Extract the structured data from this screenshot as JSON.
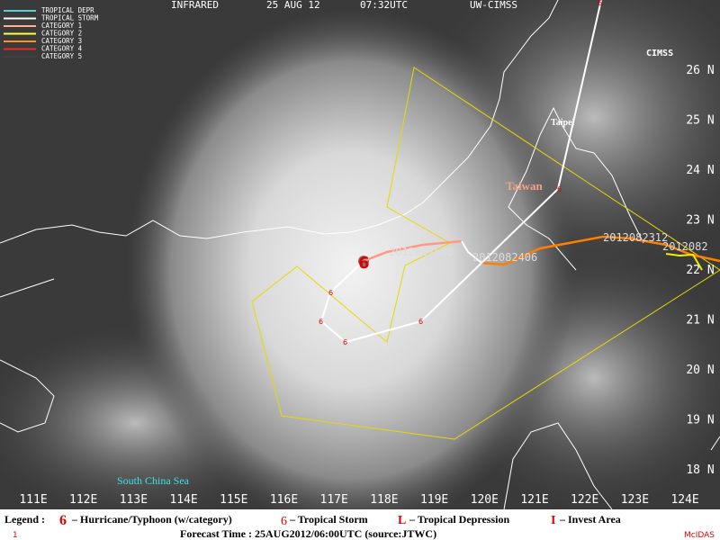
{
  "header": {
    "product": "INFRARED",
    "date": "25 AUG 12",
    "time": "07:32UTC",
    "source": "UW-CIMSS"
  },
  "logo": "CIMSS",
  "track_legend": [
    "TROPICAL DEPR",
    "TROPICAL STORM",
    "CATEGORY 1",
    "CATEGORY 2",
    "CATEGORY 3",
    "CATEGORY 4",
    "CATEGORY 5"
  ],
  "latitude_labels": [
    "26 N",
    "25 N",
    "24 N",
    "23 N",
    "22 N",
    "21 N",
    "20 N",
    "19 N",
    "18 N"
  ],
  "longitude_labels": [
    "111E",
    "112E",
    "113E",
    "114E",
    "115E",
    "116E",
    "117E",
    "118E",
    "119E",
    "120E",
    "121E",
    "122E",
    "123E",
    "124E"
  ],
  "places": {
    "city": "Taipei",
    "island": "Taiwan",
    "sea": "South China Sea"
  },
  "track_times": [
    "2012082500",
    "2012082406",
    "2012082312",
    "2012082"
  ],
  "legend": {
    "title": "Legend :",
    "typhoon": "– Hurricane/Typhoon (w/category)",
    "storm": "– Tropical Storm",
    "depression": "– Tropical Depression",
    "invest": "– Invest Area"
  },
  "footer": {
    "frame": "1",
    "forecast": "Forecast Time : 25AUG2012/06:00UTC (source:JTWC)",
    "brand": "McIDAS"
  }
}
